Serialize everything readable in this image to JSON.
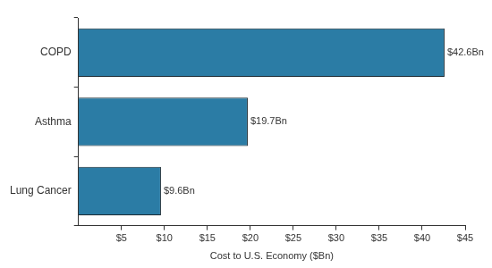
{
  "chart_data": {
    "type": "bar",
    "orientation": "horizontal",
    "x_label": "Cost to U.S. Economy ($Bn)",
    "categories": [
      "COPD",
      "Asthma",
      "Lung Cancer"
    ],
    "values": [
      42.6,
      19.7,
      9.6
    ],
    "value_labels": [
      "$42.6Bn",
      "$19.7Bn",
      "$9.6Bn"
    ],
    "data_labels": true,
    "color": "#2b7ca5",
    "xlim": [
      0,
      45
    ],
    "xticks": [
      {
        "value": 5,
        "label": "$5"
      },
      {
        "value": 10,
        "label": "$10"
      },
      {
        "value": 15,
        "label": "$15"
      },
      {
        "value": 20,
        "label": "$20"
      },
      {
        "value": 25,
        "label": "$25"
      },
      {
        "value": 30,
        "label": "$30"
      },
      {
        "value": 35,
        "label": "$35"
      },
      {
        "value": 40,
        "label": "$40"
      },
      {
        "value": 45,
        "label": "$45"
      }
    ],
    "grid": false
  }
}
